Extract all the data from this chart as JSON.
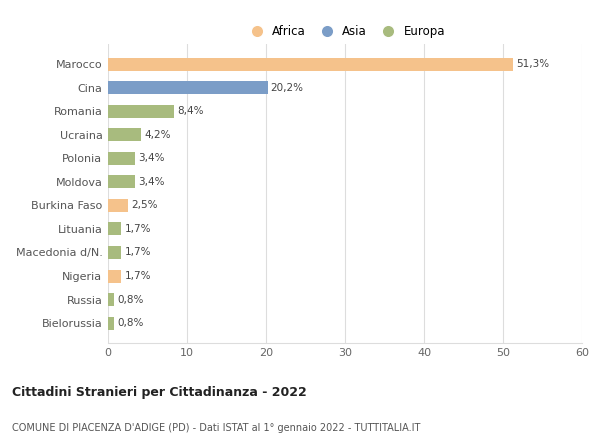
{
  "categories": [
    "Marocco",
    "Cina",
    "Romania",
    "Ucraina",
    "Polonia",
    "Moldova",
    "Burkina Faso",
    "Lituania",
    "Macedonia d/N.",
    "Nigeria",
    "Russia",
    "Bielorussia"
  ],
  "values": [
    51.3,
    20.2,
    8.4,
    4.2,
    3.4,
    3.4,
    2.5,
    1.7,
    1.7,
    1.7,
    0.8,
    0.8
  ],
  "labels": [
    "51,3%",
    "20,2%",
    "8,4%",
    "4,2%",
    "3,4%",
    "3,4%",
    "2,5%",
    "1,7%",
    "1,7%",
    "1,7%",
    "0,8%",
    "0,8%"
  ],
  "colors": [
    "#F5C28B",
    "#7B9DC7",
    "#A8BB7E",
    "#A8BB7E",
    "#A8BB7E",
    "#A8BB7E",
    "#F5C28B",
    "#A8BB7E",
    "#A8BB7E",
    "#F5C28B",
    "#A8BB7E",
    "#A8BB7E"
  ],
  "legend_labels": [
    "Africa",
    "Asia",
    "Europa"
  ],
  "legend_colors": [
    "#F5C28B",
    "#7B9DC7",
    "#A8BB7E"
  ],
  "title1": "Cittadini Stranieri per Cittadinanza - 2022",
  "title2": "COMUNE DI PIACENZA D'ADIGE (PD) - Dati ISTAT al 1° gennaio 2022 - TUTTITALIA.IT",
  "xlim": [
    0,
    60
  ],
  "xticks": [
    0,
    10,
    20,
    30,
    40,
    50,
    60
  ],
  "background_color": "#ffffff",
  "grid_color": "#dddddd",
  "bar_height": 0.55
}
